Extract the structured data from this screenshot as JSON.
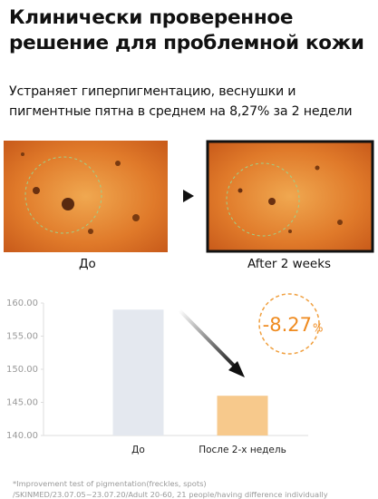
{
  "header": {
    "title": [
      "Клинически проверенное",
      "решение для проблемной кожи"
    ],
    "subtitle": [
      "Устраняет гиперпигментацию, веснушки и",
      "пигментные пятна в среднем на 8,27% за 2 недели"
    ]
  },
  "images": {
    "before_label": "До",
    "after_label": "After 2 weeks"
  },
  "chart_data": {
    "type": "bar",
    "categories": [
      "До",
      "После 2-х недель"
    ],
    "series": [
      {
        "name": "pigmentation",
        "colors": [
          "#e4e8ef",
          "#f7c98c"
        ],
        "values": [
          159.0,
          146.0
        ]
      }
    ],
    "ylim": [
      140,
      160
    ],
    "yticks": [
      {
        "value": 140,
        "label": "140.00"
      },
      {
        "value": 145,
        "label": "145.00"
      },
      {
        "value": 150,
        "label": "150.00"
      },
      {
        "value": 155,
        "label": "155.00"
      },
      {
        "value": 160,
        "label": "160.00"
      }
    ],
    "grid": false,
    "annotation": {
      "value": "-8.27",
      "unit": "%"
    }
  },
  "footnotes": [
    "*Improvement test of pigmentation(freckles, spots)",
    "/SKINMED/23.07.05~23.07.20/Adult 20-60, 21 people/having difference individually"
  ]
}
